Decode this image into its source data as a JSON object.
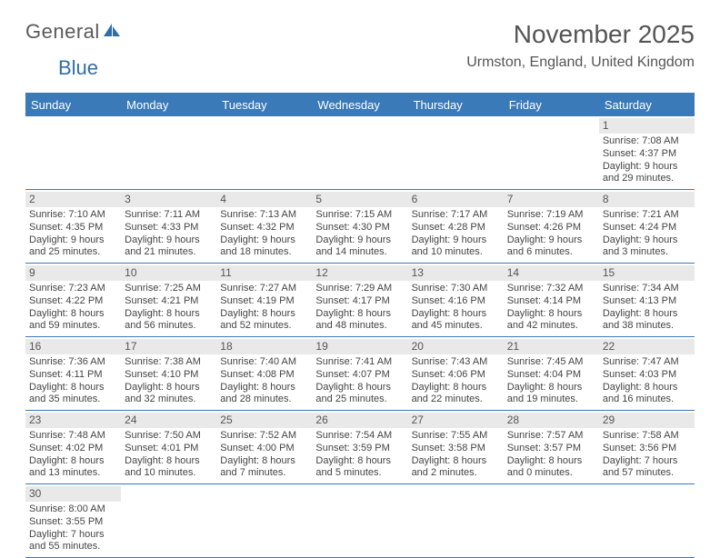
{
  "logo": {
    "part1": "General",
    "part2": "Blue"
  },
  "title": "November 2025",
  "location": "Urmston, England, United Kingdom",
  "colors": {
    "header_bg": "#3a7ab8",
    "header_text": "#ffffff",
    "daynum_bg": "#e9e9e9",
    "text": "#444444",
    "logo_gray": "#5a5a5a",
    "logo_blue": "#2f6ea8"
  },
  "days_of_week": [
    "Sunday",
    "Monday",
    "Tuesday",
    "Wednesday",
    "Thursday",
    "Friday",
    "Saturday"
  ],
  "weeks": [
    [
      null,
      null,
      null,
      null,
      null,
      null,
      {
        "n": "1",
        "sunrise": "Sunrise: 7:08 AM",
        "sunset": "Sunset: 4:37 PM",
        "dl1": "Daylight: 9 hours",
        "dl2": "and 29 minutes."
      }
    ],
    [
      {
        "n": "2",
        "sunrise": "Sunrise: 7:10 AM",
        "sunset": "Sunset: 4:35 PM",
        "dl1": "Daylight: 9 hours",
        "dl2": "and 25 minutes."
      },
      {
        "n": "3",
        "sunrise": "Sunrise: 7:11 AM",
        "sunset": "Sunset: 4:33 PM",
        "dl1": "Daylight: 9 hours",
        "dl2": "and 21 minutes."
      },
      {
        "n": "4",
        "sunrise": "Sunrise: 7:13 AM",
        "sunset": "Sunset: 4:32 PM",
        "dl1": "Daylight: 9 hours",
        "dl2": "and 18 minutes."
      },
      {
        "n": "5",
        "sunrise": "Sunrise: 7:15 AM",
        "sunset": "Sunset: 4:30 PM",
        "dl1": "Daylight: 9 hours",
        "dl2": "and 14 minutes."
      },
      {
        "n": "6",
        "sunrise": "Sunrise: 7:17 AM",
        "sunset": "Sunset: 4:28 PM",
        "dl1": "Daylight: 9 hours",
        "dl2": "and 10 minutes."
      },
      {
        "n": "7",
        "sunrise": "Sunrise: 7:19 AM",
        "sunset": "Sunset: 4:26 PM",
        "dl1": "Daylight: 9 hours",
        "dl2": "and 6 minutes."
      },
      {
        "n": "8",
        "sunrise": "Sunrise: 7:21 AM",
        "sunset": "Sunset: 4:24 PM",
        "dl1": "Daylight: 9 hours",
        "dl2": "and 3 minutes."
      }
    ],
    [
      {
        "n": "9",
        "sunrise": "Sunrise: 7:23 AM",
        "sunset": "Sunset: 4:22 PM",
        "dl1": "Daylight: 8 hours",
        "dl2": "and 59 minutes."
      },
      {
        "n": "10",
        "sunrise": "Sunrise: 7:25 AM",
        "sunset": "Sunset: 4:21 PM",
        "dl1": "Daylight: 8 hours",
        "dl2": "and 56 minutes."
      },
      {
        "n": "11",
        "sunrise": "Sunrise: 7:27 AM",
        "sunset": "Sunset: 4:19 PM",
        "dl1": "Daylight: 8 hours",
        "dl2": "and 52 minutes."
      },
      {
        "n": "12",
        "sunrise": "Sunrise: 7:29 AM",
        "sunset": "Sunset: 4:17 PM",
        "dl1": "Daylight: 8 hours",
        "dl2": "and 48 minutes."
      },
      {
        "n": "13",
        "sunrise": "Sunrise: 7:30 AM",
        "sunset": "Sunset: 4:16 PM",
        "dl1": "Daylight: 8 hours",
        "dl2": "and 45 minutes."
      },
      {
        "n": "14",
        "sunrise": "Sunrise: 7:32 AM",
        "sunset": "Sunset: 4:14 PM",
        "dl1": "Daylight: 8 hours",
        "dl2": "and 42 minutes."
      },
      {
        "n": "15",
        "sunrise": "Sunrise: 7:34 AM",
        "sunset": "Sunset: 4:13 PM",
        "dl1": "Daylight: 8 hours",
        "dl2": "and 38 minutes."
      }
    ],
    [
      {
        "n": "16",
        "sunrise": "Sunrise: 7:36 AM",
        "sunset": "Sunset: 4:11 PM",
        "dl1": "Daylight: 8 hours",
        "dl2": "and 35 minutes."
      },
      {
        "n": "17",
        "sunrise": "Sunrise: 7:38 AM",
        "sunset": "Sunset: 4:10 PM",
        "dl1": "Daylight: 8 hours",
        "dl2": "and 32 minutes."
      },
      {
        "n": "18",
        "sunrise": "Sunrise: 7:40 AM",
        "sunset": "Sunset: 4:08 PM",
        "dl1": "Daylight: 8 hours",
        "dl2": "and 28 minutes."
      },
      {
        "n": "19",
        "sunrise": "Sunrise: 7:41 AM",
        "sunset": "Sunset: 4:07 PM",
        "dl1": "Daylight: 8 hours",
        "dl2": "and 25 minutes."
      },
      {
        "n": "20",
        "sunrise": "Sunrise: 7:43 AM",
        "sunset": "Sunset: 4:06 PM",
        "dl1": "Daylight: 8 hours",
        "dl2": "and 22 minutes."
      },
      {
        "n": "21",
        "sunrise": "Sunrise: 7:45 AM",
        "sunset": "Sunset: 4:04 PM",
        "dl1": "Daylight: 8 hours",
        "dl2": "and 19 minutes."
      },
      {
        "n": "22",
        "sunrise": "Sunrise: 7:47 AM",
        "sunset": "Sunset: 4:03 PM",
        "dl1": "Daylight: 8 hours",
        "dl2": "and 16 minutes."
      }
    ],
    [
      {
        "n": "23",
        "sunrise": "Sunrise: 7:48 AM",
        "sunset": "Sunset: 4:02 PM",
        "dl1": "Daylight: 8 hours",
        "dl2": "and 13 minutes."
      },
      {
        "n": "24",
        "sunrise": "Sunrise: 7:50 AM",
        "sunset": "Sunset: 4:01 PM",
        "dl1": "Daylight: 8 hours",
        "dl2": "and 10 minutes."
      },
      {
        "n": "25",
        "sunrise": "Sunrise: 7:52 AM",
        "sunset": "Sunset: 4:00 PM",
        "dl1": "Daylight: 8 hours",
        "dl2": "and 7 minutes."
      },
      {
        "n": "26",
        "sunrise": "Sunrise: 7:54 AM",
        "sunset": "Sunset: 3:59 PM",
        "dl1": "Daylight: 8 hours",
        "dl2": "and 5 minutes."
      },
      {
        "n": "27",
        "sunrise": "Sunrise: 7:55 AM",
        "sunset": "Sunset: 3:58 PM",
        "dl1": "Daylight: 8 hours",
        "dl2": "and 2 minutes."
      },
      {
        "n": "28",
        "sunrise": "Sunrise: 7:57 AM",
        "sunset": "Sunset: 3:57 PM",
        "dl1": "Daylight: 8 hours",
        "dl2": "and 0 minutes."
      },
      {
        "n": "29",
        "sunrise": "Sunrise: 7:58 AM",
        "sunset": "Sunset: 3:56 PM",
        "dl1": "Daylight: 7 hours",
        "dl2": "and 57 minutes."
      }
    ],
    [
      {
        "n": "30",
        "sunrise": "Sunrise: 8:00 AM",
        "sunset": "Sunset: 3:55 PM",
        "dl1": "Daylight: 7 hours",
        "dl2": "and 55 minutes."
      },
      null,
      null,
      null,
      null,
      null,
      null
    ]
  ]
}
